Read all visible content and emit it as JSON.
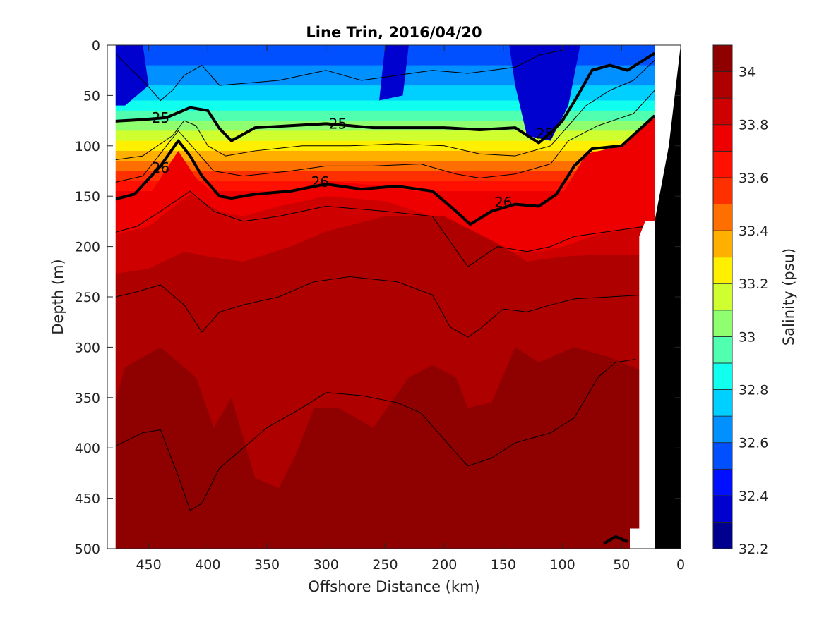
{
  "chart_data": {
    "type": "heatmap",
    "title": "Line Trin, 2016/04/20",
    "xlabel": "Offshore Distance (km)",
    "ylabel": "Depth (m)",
    "xlim": [
      485,
      0
    ],
    "ylim": [
      0,
      500
    ],
    "x_ticks": [
      "450",
      "400",
      "350",
      "300",
      "250",
      "200",
      "150",
      "100",
      "50",
      "0"
    ],
    "y_ticks": [
      "0",
      "50",
      "100",
      "150",
      "200",
      "250",
      "300",
      "350",
      "400",
      "450",
      "500"
    ],
    "colorbar": {
      "label": "Salinity (psu)",
      "range": [
        32.2,
        34.1
      ],
      "ticks": [
        "32.2",
        "32.4",
        "32.6",
        "32.8",
        "33",
        "33.2",
        "33.4",
        "33.6",
        "33.8",
        "34"
      ],
      "levels": [
        32.2,
        32.3,
        32.4,
        32.5,
        32.6,
        32.7,
        32.8,
        32.9,
        33.0,
        33.1,
        33.2,
        33.3,
        33.4,
        33.5,
        33.6,
        33.7,
        33.8,
        33.9,
        34.0,
        34.1
      ],
      "colors": [
        "#00008f",
        "#0000cf",
        "#0010ff",
        "#0050ff",
        "#0090ff",
        "#00d0ff",
        "#10ffef",
        "#50ffaf",
        "#90ff6f",
        "#d0ff2f",
        "#ffef00",
        "#ffaf00",
        "#ff6f00",
        "#ff3000",
        "#ff1000",
        "#ef0000",
        "#cf0000",
        "#af0000",
        "#8f0000"
      ]
    },
    "salinity_bands": [
      {
        "range": "33.7–33.8",
        "boundary": [
          [
            485,
            160
          ],
          [
            450,
            150
          ],
          [
            425,
            105
          ],
          [
            410,
            132
          ],
          [
            390,
            152
          ],
          [
            350,
            150
          ],
          [
            300,
            135
          ],
          [
            250,
            140
          ],
          [
            200,
            150
          ],
          [
            175,
            175
          ],
          [
            150,
            170
          ],
          [
            120,
            160
          ],
          [
            100,
            148
          ],
          [
            80,
            108
          ],
          [
            50,
            100
          ],
          [
            22,
            72
          ]
        ]
      },
      {
        "range": "33.8–33.9",
        "boundary": [
          [
            485,
            190
          ],
          [
            450,
            180
          ],
          [
            415,
            148
          ],
          [
            390,
            165
          ],
          [
            370,
            170
          ],
          [
            340,
            160
          ],
          [
            300,
            150
          ],
          [
            250,
            155
          ],
          [
            210,
            170
          ],
          [
            180,
            220
          ],
          [
            150,
            205
          ],
          [
            120,
            205
          ],
          [
            100,
            200
          ],
          [
            70,
            188
          ],
          [
            22,
            178
          ]
        ]
      },
      {
        "range": "33.9–34.0",
        "boundary": [
          [
            485,
            228
          ],
          [
            450,
            222
          ],
          [
            420,
            205
          ],
          [
            400,
            210
          ],
          [
            370,
            215
          ],
          [
            330,
            200
          ],
          [
            300,
            185
          ],
          [
            250,
            170
          ],
          [
            200,
            170
          ],
          [
            175,
            185
          ],
          [
            150,
            200
          ],
          [
            130,
            215
          ],
          [
            100,
            210
          ],
          [
            70,
            208
          ],
          [
            30,
            208
          ]
        ]
      },
      {
        "range": "34.0–34.1",
        "boundary": [
          [
            485,
            380
          ],
          [
            470,
            320
          ],
          [
            440,
            300
          ],
          [
            410,
            330
          ],
          [
            395,
            380
          ],
          [
            380,
            350
          ],
          [
            360,
            430
          ],
          [
            340,
            440
          ],
          [
            325,
            405
          ],
          [
            310,
            360
          ],
          [
            290,
            360
          ],
          [
            260,
            380
          ],
          [
            230,
            330
          ],
          [
            210,
            318
          ],
          [
            190,
            330
          ],
          [
            180,
            360
          ],
          [
            160,
            355
          ],
          [
            140,
            300
          ],
          [
            120,
            315
          ],
          [
            90,
            300
          ],
          [
            60,
            310
          ],
          [
            30,
            325
          ]
        ]
      }
    ],
    "density_contours": [
      {
        "value": "25",
        "bold": true,
        "points": [
          [
            485,
            76
          ],
          [
            455,
            74
          ],
          [
            435,
            72
          ],
          [
            415,
            62
          ],
          [
            400,
            65
          ],
          [
            390,
            83
          ],
          [
            380,
            95
          ],
          [
            360,
            82
          ],
          [
            330,
            80
          ],
          [
            300,
            78
          ],
          [
            260,
            82
          ],
          [
            230,
            82
          ],
          [
            200,
            82
          ],
          [
            170,
            84
          ],
          [
            140,
            82
          ],
          [
            120,
            97
          ],
          [
            108,
            85
          ],
          [
            100,
            75
          ],
          [
            88,
            52
          ],
          [
            75,
            25
          ],
          [
            60,
            20
          ],
          [
            45,
            25
          ],
          [
            22,
            8
          ]
        ]
      },
      {
        "value": "26",
        "bold": true,
        "points": [
          [
            485,
            155
          ],
          [
            462,
            148
          ],
          [
            440,
            120
          ],
          [
            425,
            95
          ],
          [
            415,
            110
          ],
          [
            405,
            130
          ],
          [
            390,
            150
          ],
          [
            380,
            152
          ],
          [
            360,
            148
          ],
          [
            330,
            145
          ],
          [
            300,
            138
          ],
          [
            270,
            143
          ],
          [
            240,
            140
          ],
          [
            210,
            145
          ],
          [
            190,
            165
          ],
          [
            178,
            178
          ],
          [
            160,
            165
          ],
          [
            140,
            158
          ],
          [
            120,
            160
          ],
          [
            105,
            148
          ],
          [
            90,
            120
          ],
          [
            75,
            103
          ],
          [
            50,
            100
          ],
          [
            22,
            70
          ]
        ]
      },
      {
        "value": "",
        "bold": true,
        "points": [
          [
            65,
            495
          ],
          [
            55,
            488
          ],
          [
            45,
            493
          ]
        ]
      },
      {
        "value": "",
        "bold": false,
        "points": [
          [
            485,
            0
          ],
          [
            470,
            18
          ],
          [
            455,
            35
          ],
          [
            440,
            55
          ],
          [
            430,
            45
          ],
          [
            420,
            30
          ],
          [
            405,
            20
          ],
          [
            390,
            40
          ],
          [
            370,
            38
          ],
          [
            340,
            35
          ],
          [
            320,
            30
          ],
          [
            300,
            25
          ],
          [
            270,
            35
          ],
          [
            240,
            30
          ],
          [
            210,
            25
          ],
          [
            180,
            28
          ],
          [
            140,
            22
          ],
          [
            120,
            10
          ],
          [
            100,
            5
          ]
        ]
      },
      {
        "value": "",
        "bold": false,
        "points": [
          [
            485,
            115
          ],
          [
            455,
            110
          ],
          [
            430,
            90
          ],
          [
            420,
            75
          ],
          [
            410,
            80
          ],
          [
            400,
            100
          ],
          [
            385,
            110
          ],
          [
            360,
            105
          ],
          [
            320,
            100
          ],
          [
            280,
            100
          ],
          [
            240,
            98
          ],
          [
            200,
            100
          ],
          [
            170,
            108
          ],
          [
            140,
            110
          ],
          [
            110,
            100
          ],
          [
            95,
            80
          ],
          [
            80,
            60
          ],
          [
            60,
            45
          ],
          [
            40,
            35
          ],
          [
            22,
            15
          ]
        ]
      },
      {
        "value": "",
        "bold": false,
        "points": [
          [
            485,
            138
          ],
          [
            455,
            130
          ],
          [
            435,
            100
          ],
          [
            425,
            85
          ],
          [
            410,
            105
          ],
          [
            395,
            125
          ],
          [
            370,
            130
          ],
          [
            330,
            125
          ],
          [
            300,
            120
          ],
          [
            260,
            120
          ],
          [
            220,
            118
          ],
          [
            190,
            128
          ],
          [
            170,
            132
          ],
          [
            140,
            128
          ],
          [
            110,
            118
          ],
          [
            95,
            95
          ],
          [
            70,
            80
          ],
          [
            40,
            68
          ],
          [
            22,
            45
          ]
        ]
      },
      {
        "value": "",
        "bold": false,
        "points": [
          [
            485,
            188
          ],
          [
            460,
            180
          ],
          [
            440,
            165
          ],
          [
            415,
            145
          ],
          [
            395,
            165
          ],
          [
            370,
            175
          ],
          [
            340,
            170
          ],
          [
            300,
            160
          ],
          [
            250,
            165
          ],
          [
            210,
            170
          ],
          [
            180,
            220
          ],
          [
            155,
            200
          ],
          [
            130,
            205
          ],
          [
            110,
            200
          ],
          [
            90,
            190
          ],
          [
            60,
            185
          ],
          [
            30,
            180
          ]
        ]
      },
      {
        "value": "",
        "bold": false,
        "points": [
          [
            485,
            252
          ],
          [
            460,
            245
          ],
          [
            440,
            238
          ],
          [
            420,
            258
          ],
          [
            405,
            285
          ],
          [
            390,
            265
          ],
          [
            370,
            258
          ],
          [
            340,
            250
          ],
          [
            310,
            235
          ],
          [
            280,
            230
          ],
          [
            240,
            235
          ],
          [
            210,
            248
          ],
          [
            195,
            280
          ],
          [
            180,
            290
          ],
          [
            170,
            282
          ],
          [
            150,
            262
          ],
          [
            130,
            265
          ],
          [
            110,
            258
          ],
          [
            90,
            252
          ],
          [
            60,
            250
          ],
          [
            30,
            248
          ]
        ]
      },
      {
        "value": "",
        "bold": false,
        "points": [
          [
            485,
            402
          ],
          [
            455,
            385
          ],
          [
            440,
            382
          ],
          [
            425,
            428
          ],
          [
            415,
            462
          ],
          [
            405,
            455
          ],
          [
            390,
            420
          ],
          [
            370,
            400
          ],
          [
            350,
            380
          ],
          [
            320,
            360
          ],
          [
            300,
            345
          ],
          [
            270,
            348
          ],
          [
            240,
            355
          ],
          [
            220,
            365
          ],
          [
            205,
            385
          ],
          [
            190,
            405
          ],
          [
            180,
            418
          ],
          [
            160,
            410
          ],
          [
            140,
            395
          ],
          [
            110,
            385
          ],
          [
            90,
            370
          ],
          [
            70,
            330
          ],
          [
            55,
            315
          ],
          [
            38,
            312
          ]
        ]
      }
    ],
    "bathymetry": {
      "bottom": [
        [
          22,
          500
        ],
        [
          22,
          175
        ],
        [
          10,
          100
        ],
        [
          0,
          0
        ]
      ],
      "no_data_edge": [
        [
          485,
          0
        ],
        [
          478,
          0
        ],
        [
          478,
          500
        ],
        [
          485,
          500
        ]
      ],
      "shelf_gap": [
        [
          30,
          175
        ],
        [
          35,
          190
        ],
        [
          35,
          480
        ],
        [
          43,
          480
        ],
        [
          43,
          500
        ],
        [
          22,
          500
        ],
        [
          22,
          175
        ]
      ]
    }
  }
}
